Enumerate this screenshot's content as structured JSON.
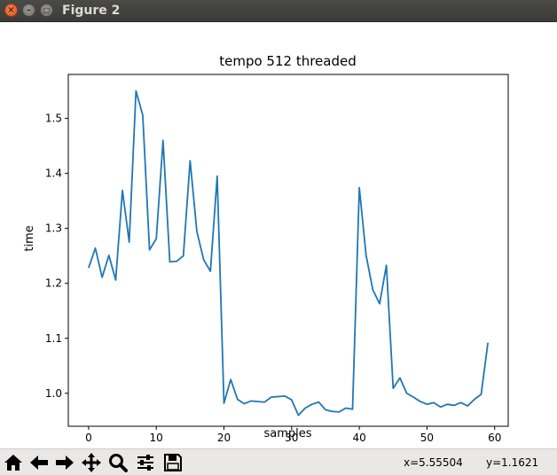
{
  "window": {
    "title": "Figure 2",
    "close_glyph": "×",
    "min_glyph": "–",
    "max_glyph": "□"
  },
  "toolbar": {
    "buttons": [
      {
        "name": "home-icon"
      },
      {
        "name": "back-arrow-icon"
      },
      {
        "name": "forward-arrow-icon"
      },
      {
        "name": "pan-icon"
      },
      {
        "name": "zoom-icon"
      },
      {
        "name": "subplots-config-icon"
      },
      {
        "name": "save-icon"
      }
    ],
    "x_readout": "x=5.55504",
    "y_readout": "y=1.1621"
  },
  "chart_data": {
    "type": "line",
    "title": "tempo 512 threaded",
    "xlabel": "samples",
    "ylabel": "time",
    "xlim": [
      -3,
      62
    ],
    "ylim": [
      0.94,
      1.58
    ],
    "xticks": [
      0,
      10,
      20,
      30,
      40,
      50,
      60
    ],
    "yticks": [
      1.0,
      1.1,
      1.2,
      1.3,
      1.4,
      1.5
    ],
    "ytick_labels": [
      "1.0",
      "1.1",
      "1.2",
      "1.3",
      "1.4",
      "1.5"
    ],
    "grid": false,
    "line_color": "#1f77b4",
    "x": [
      0,
      1,
      2,
      3,
      4,
      5,
      6,
      7,
      8,
      9,
      10,
      11,
      12,
      13,
      14,
      15,
      16,
      17,
      18,
      19,
      20,
      21,
      22,
      23,
      24,
      25,
      26,
      27,
      28,
      29,
      30,
      31,
      32,
      33,
      34,
      35,
      36,
      37,
      38,
      39,
      40,
      41,
      42,
      43,
      44,
      45,
      46,
      47,
      48,
      49,
      50,
      51,
      52,
      53,
      54,
      55,
      56,
      57,
      58,
      59
    ],
    "y": [
      1.228,
      1.264,
      1.211,
      1.251,
      1.206,
      1.369,
      1.275,
      1.55,
      1.506,
      1.261,
      1.281,
      1.46,
      1.239,
      1.24,
      1.25,
      1.423,
      1.294,
      1.243,
      1.222,
      1.395,
      0.982,
      1.025,
      0.989,
      0.981,
      0.986,
      0.985,
      0.984,
      0.993,
      0.994,
      0.995,
      0.988,
      0.96,
      0.973,
      0.98,
      0.984,
      0.97,
      0.967,
      0.966,
      0.973,
      0.971,
      1.374,
      1.251,
      1.188,
      1.163,
      1.233,
      1.009,
      1.028,
      1.0,
      0.993,
      0.985,
      0.98,
      0.983,
      0.975,
      0.98,
      0.978,
      0.983,
      0.977,
      0.989,
      0.998,
      1.092
    ]
  }
}
